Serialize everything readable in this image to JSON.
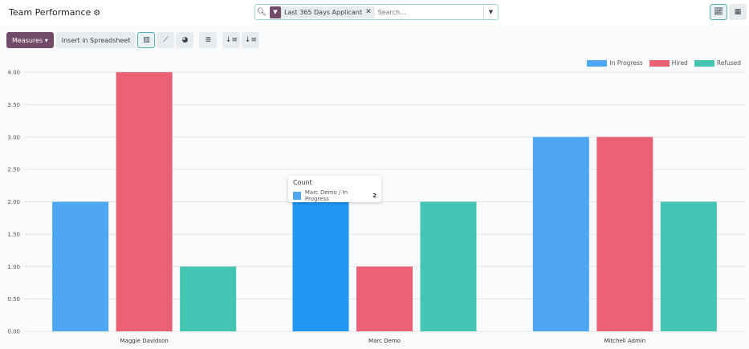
{
  "header": {
    "title": "Team Performance",
    "settings_icon": "gear-icon"
  },
  "search": {
    "facet_label": "Last 365 Days Applicant",
    "placeholder": "Search..."
  },
  "view_switcher": [
    {
      "icon": "graph-icon",
      "active": true
    },
    {
      "icon": "pivot-icon",
      "active": false
    }
  ],
  "toolbar": {
    "measures_label": "Measures",
    "insert_label": "Insert in Spreadsheet",
    "chart_buttons": [
      {
        "icon": "bar-chart-icon",
        "active": true
      },
      {
        "icon": "line-chart-icon"
      },
      {
        "icon": "pie-chart-icon"
      },
      {
        "icon": "stacked-icon"
      },
      {
        "icon": "sort-descending-icon"
      },
      {
        "icon": "sort-ascending-icon"
      }
    ]
  },
  "tooltip": {
    "title": "Count",
    "label": "Marc Demo / In Progress",
    "value": "2"
  },
  "chart_data": {
    "type": "bar",
    "categories": [
      "Maggie Davidson",
      "Marc Demo",
      "Mitchell Admin"
    ],
    "series": [
      {
        "name": "In Progress",
        "values": [
          2,
          2,
          3
        ],
        "color": "#4ea7f2"
      },
      {
        "name": "Hired",
        "values": [
          4,
          1,
          3
        ],
        "color": "#ea6175"
      },
      {
        "name": "Refused",
        "values": [
          1,
          2,
          2
        ],
        "color": "#43c5b1"
      }
    ],
    "ylim": [
      0,
      4
    ],
    "yticks": [
      "0.00",
      "0.50",
      "1.00",
      "1.50",
      "2.00",
      "2.50",
      "3.00",
      "3.50",
      "4.00"
    ],
    "grid": true,
    "legend": "top-right",
    "highlight_color": "#2196f3"
  }
}
